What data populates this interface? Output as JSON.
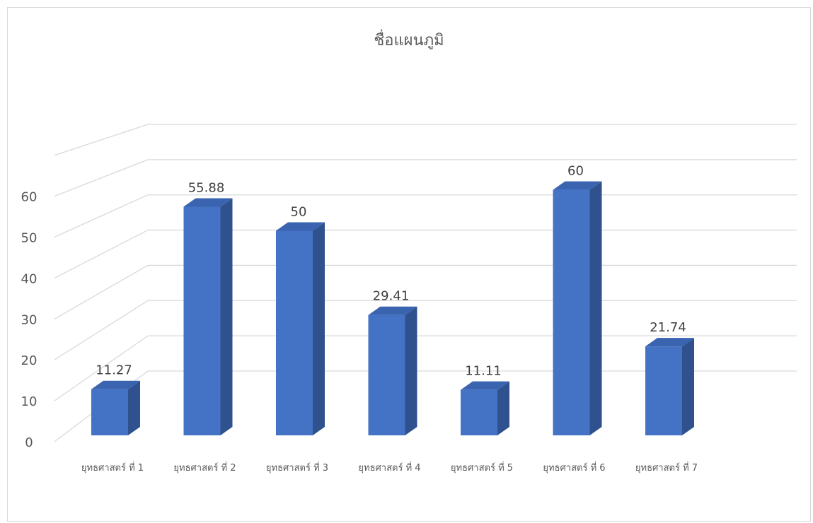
{
  "chart_data": {
    "type": "bar",
    "title": "ชื่อแผนภูมิ",
    "categories": [
      "ยุทธศาสตร์ ที่ 1",
      "ยุทธศาสตร์ ที่ 2",
      "ยุทธศาสตร์ ที่ 3",
      "ยุทธศาสตร์ ที่ 4",
      "ยุทธศาสตร์ ที่ 5",
      "ยุทธศาสตร์ ที่ 6",
      "ยุทธศาสตร์ ที่ 7"
    ],
    "values": [
      11.27,
      55.88,
      50,
      29.41,
      11.11,
      60,
      21.74
    ],
    "data_labels": [
      "11.27",
      "55.88",
      "50",
      "29.41",
      "11.11",
      "60",
      "21.74"
    ],
    "yticks": [
      0,
      10,
      20,
      30,
      40,
      50,
      60
    ],
    "ylim": [
      0,
      60
    ],
    "grid": true,
    "three_d": true,
    "colors": {
      "bar_front": "#4472c4",
      "bar_side": "#2f528f",
      "bar_top": "#3a63b0",
      "grid": "#d9d9d9",
      "text": "#595959",
      "label": "#404040"
    }
  }
}
